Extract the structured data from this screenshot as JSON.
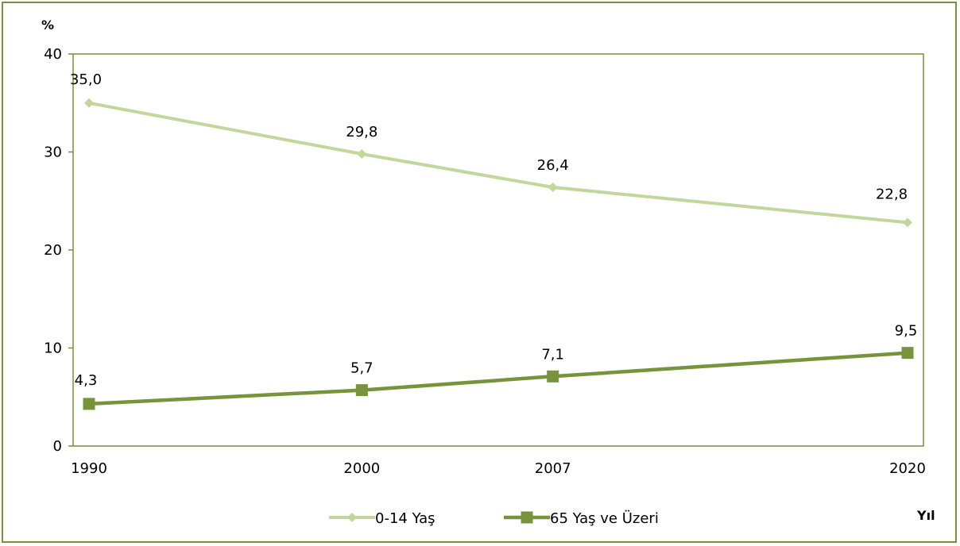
{
  "chart_data": {
    "type": "line",
    "x": [
      "1990",
      "2000",
      "2007",
      "2020"
    ],
    "xlabel": "Yıl",
    "ylabel": "%",
    "ylim": [
      0,
      40
    ],
    "yticks": [
      "0",
      "10",
      "20",
      "30",
      "40"
    ],
    "grid": false,
    "legend": "bottom",
    "series": [
      {
        "name": "0-14 Yaş",
        "values": [
          35.0,
          29.8,
          26.4,
          22.8
        ],
        "labels": [
          "35,0",
          "29,8",
          "26,4",
          "22,8"
        ],
        "color": "#c3d69b",
        "marker": "diamond"
      },
      {
        "name": "65 Yaş ve Üzeri",
        "values": [
          4.3,
          5.7,
          7.1,
          9.5
        ],
        "labels": [
          "4,3",
          "5,7",
          "7,1",
          "9,5"
        ],
        "color": "#77933c",
        "marker": "square"
      }
    ]
  },
  "colors": {
    "frame": "#77933c",
    "plot_border": "#77933c"
  }
}
